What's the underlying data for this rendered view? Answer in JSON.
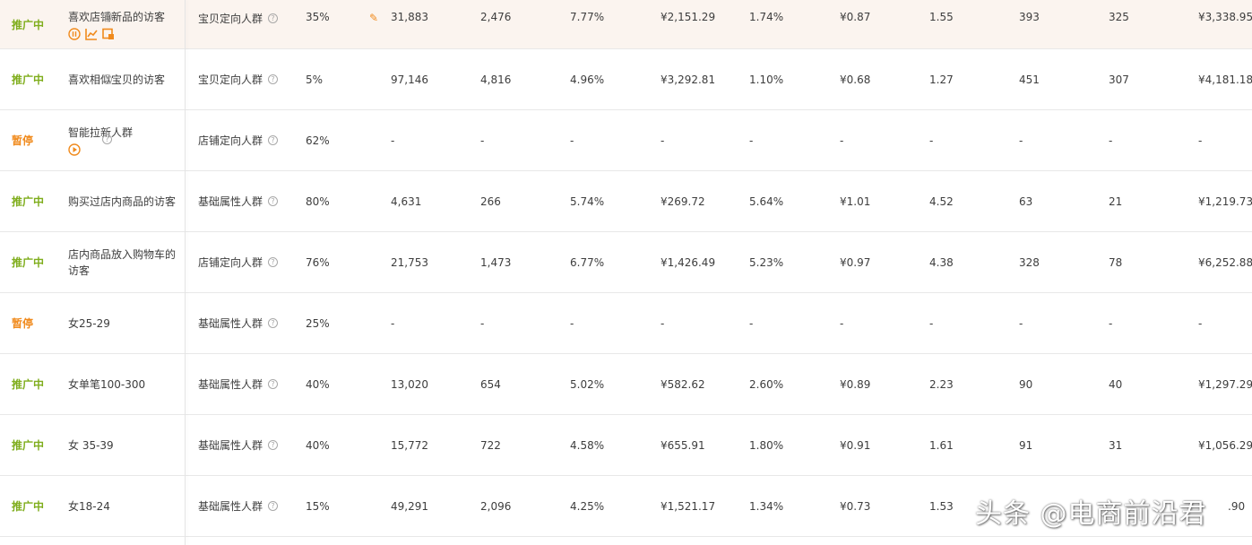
{
  "rows": [
    {
      "status": "推广中",
      "name": "喜欢店铺新品的访客",
      "type": "宝贝定向人群",
      "pct": "35%",
      "v": [
        "31,883",
        "2,476",
        "7.77%",
        "¥2,151.29",
        "1.74%",
        "¥0.87",
        "1.55",
        "393",
        "325",
        "¥3,338.95"
      ]
    },
    {
      "status": "推广中",
      "name": "喜欢相似宝贝的访客",
      "type": "宝贝定向人群",
      "pct": "5%",
      "v": [
        "97,146",
        "4,816",
        "4.96%",
        "¥3,292.81",
        "1.10%",
        "¥0.68",
        "1.27",
        "451",
        "307",
        "¥4,181.18"
      ]
    },
    {
      "status": "暂停",
      "name": "智能拉新人群",
      "type": "店铺定向人群",
      "pct": "62%",
      "v": [
        "-",
        "-",
        "-",
        "-",
        "-",
        "-",
        "-",
        "-",
        "-",
        "-"
      ]
    },
    {
      "status": "推广中",
      "name": "购买过店内商品的访客",
      "type": "基础属性人群",
      "pct": "80%",
      "v": [
        "4,631",
        "266",
        "5.74%",
        "¥269.72",
        "5.64%",
        "¥1.01",
        "4.52",
        "63",
        "21",
        "¥1,219.73"
      ]
    },
    {
      "status": "推广中",
      "name": "店内商品放入购物车的访客",
      "type": "店铺定向人群",
      "pct": "76%",
      "v": [
        "21,753",
        "1,473",
        "6.77%",
        "¥1,426.49",
        "5.23%",
        "¥0.97",
        "4.38",
        "328",
        "78",
        "¥6,252.88"
      ]
    },
    {
      "status": "暂停",
      "name": "女25-29",
      "type": "基础属性人群",
      "pct": "25%",
      "v": [
        "-",
        "-",
        "-",
        "-",
        "-",
        "-",
        "-",
        "-",
        "-",
        "-"
      ]
    },
    {
      "status": "推广中",
      "name": "女单笔100-300",
      "type": "基础属性人群",
      "pct": "40%",
      "v": [
        "13,020",
        "654",
        "5.02%",
        "¥582.62",
        "2.60%",
        "¥0.89",
        "2.23",
        "90",
        "40",
        "¥1,297.29"
      ]
    },
    {
      "status": "推广中",
      "name": "女 35-39",
      "type": "基础属性人群",
      "pct": "40%",
      "v": [
        "15,772",
        "722",
        "4.58%",
        "¥655.91",
        "1.80%",
        "¥0.91",
        "1.61",
        "91",
        "31",
        "¥1,056.29"
      ]
    },
    {
      "status": "推广中",
      "name": "女18-24",
      "type": "基础属性人群",
      "pct": "15%",
      "v": [
        "49,291",
        "2,096",
        "4.25%",
        "¥1,521.17",
        "1.34%",
        "¥0.73",
        "1.53",
        "",
        "",
        ".90"
      ]
    }
  ],
  "help_glyph": "?",
  "watermark": "头条 @电商前沿君",
  "colors": {
    "active": "#7fad1c",
    "paused": "#f08a1c",
    "highlight_row": "#fbf4ef"
  }
}
